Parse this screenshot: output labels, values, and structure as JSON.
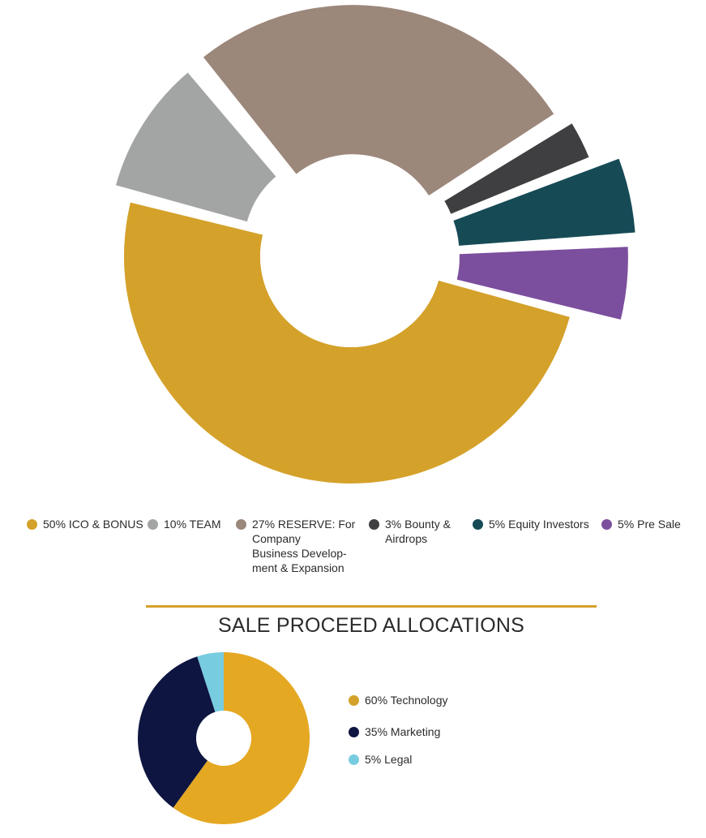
{
  "chart_data": [
    {
      "type": "pie",
      "title": "",
      "categories": [
        "ICO & BONUS",
        "TEAM",
        "RESERVE: For Company Business Development & Expansion",
        "Bounty & Airdrops",
        "Equity Investors",
        "Pre Sale"
      ],
      "values": [
        50,
        10,
        27,
        3,
        5,
        5
      ],
      "colors": [
        "#D4A12A",
        "#A3A5A4",
        "#9C877B",
        "#3F3F41",
        "#164B56",
        "#7B4E9E"
      ],
      "legend": [
        {
          "label": "50% ICO & BONUS",
          "color": "#D4A12A"
        },
        {
          "label": "10% TEAM",
          "color": "#A3A5A4"
        },
        {
          "label": "27% RESERVE: For\nCompany\nBusiness Develop-\nment & Expansion",
          "color": "#9C877B"
        },
        {
          "label": "3% Bounty &\nAirdrops",
          "color": "#3F3F41"
        },
        {
          "label": "5% Equity Investors",
          "color": "#164B56"
        },
        {
          "label": "5% Pre Sale",
          "color": "#7B4E9E"
        }
      ],
      "legend_position": "bottom"
    },
    {
      "type": "pie",
      "title": "SALE PROCEED ALLOCATIONS",
      "categories": [
        "Technology",
        "Marketing",
        "Legal"
      ],
      "values": [
        60,
        35,
        5
      ],
      "colors": [
        "#E5A823",
        "#0E1540",
        "#78CCE0"
      ],
      "legend": [
        {
          "label": "60% Technology",
          "color": "#D4A12A"
        },
        {
          "label": "35% Marketing",
          "color": "#0E1540"
        },
        {
          "label": "5% Legal",
          "color": "#78CCE0"
        }
      ],
      "legend_position": "right"
    }
  ],
  "accent_color": "#D4A12A"
}
